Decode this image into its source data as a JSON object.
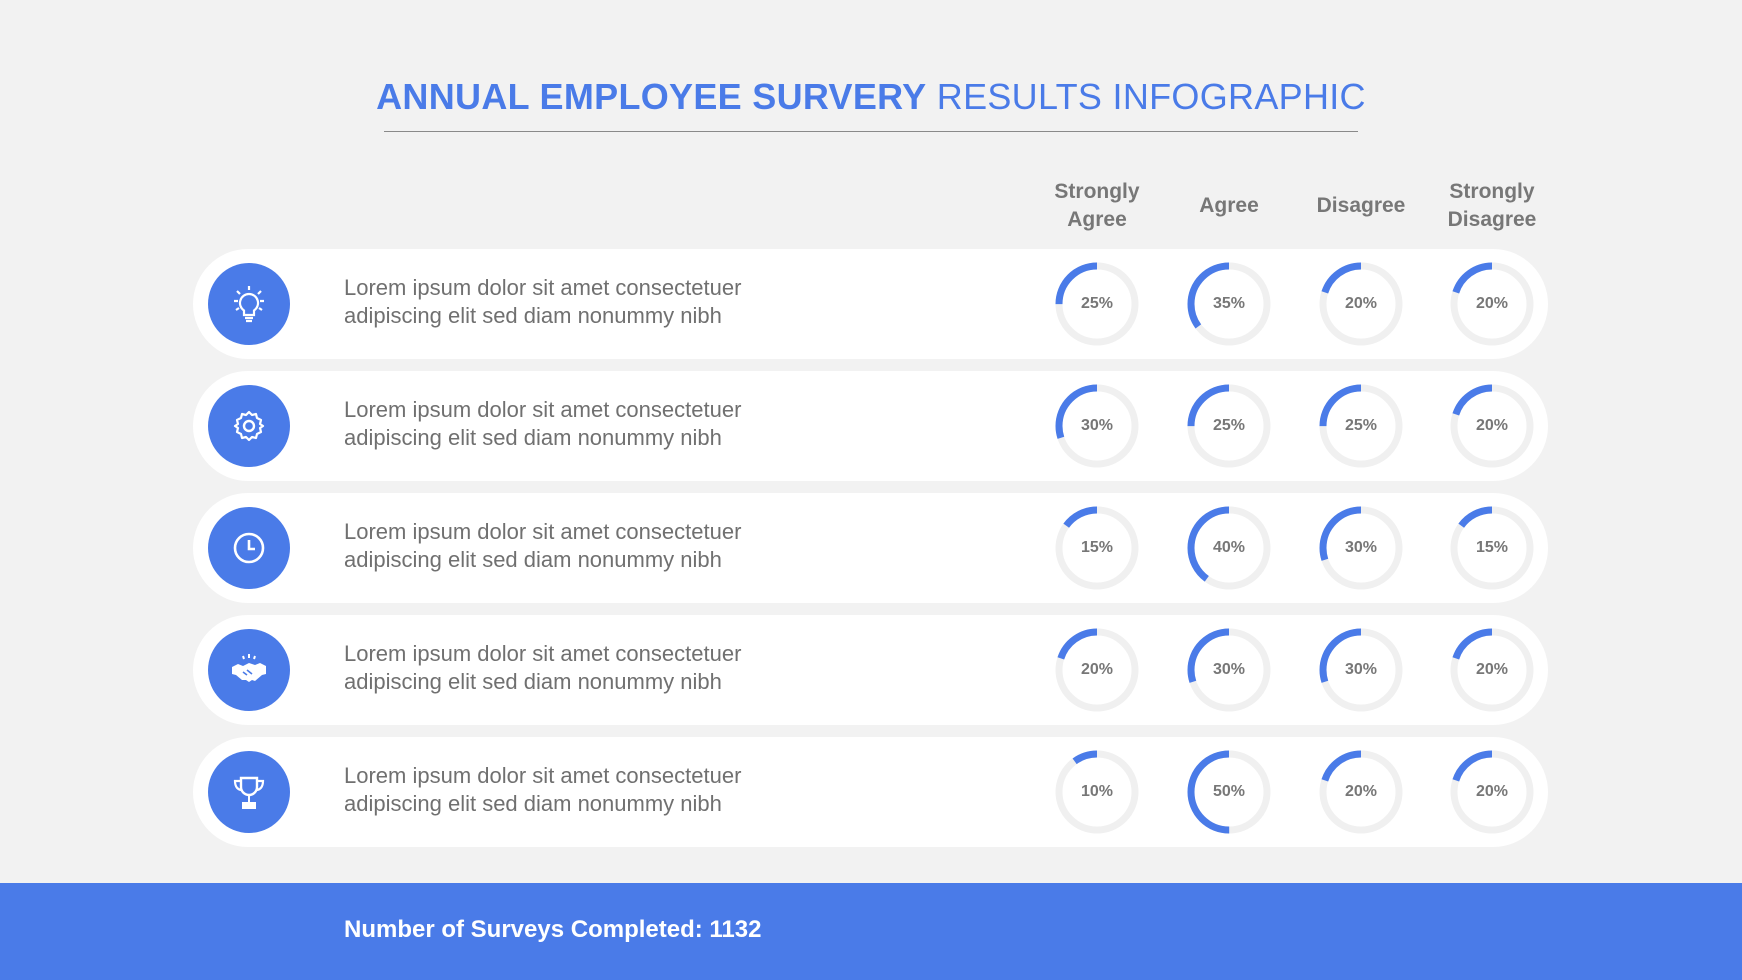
{
  "title": {
    "bold": "ANNUAL EMPLOYEE SURVERY",
    "light": "RESULTS INFOGRAPHIC"
  },
  "columns": [
    "Strongly Agree",
    "Agree",
    "Disagree",
    "Strongly Disagree"
  ],
  "colors": {
    "accent": "#4a7be8",
    "track": "#f0f0f0",
    "background": "#f2f2f2"
  },
  "rows": [
    {
      "icon": "lightbulb-icon",
      "line1": "Lorem ipsum dolor sit amet consectetuer",
      "line2": "adipiscing elit sed diam nonummy nibh",
      "values": [
        25,
        35,
        20,
        20
      ],
      "labels": [
        "25%",
        "35%",
        "20%",
        "20%"
      ]
    },
    {
      "icon": "gear-icon",
      "line1": "Lorem ipsum dolor sit amet consectetuer",
      "line2": "adipiscing elit sed diam nonummy nibh",
      "values": [
        30,
        25,
        25,
        20
      ],
      "labels": [
        "30%",
        "25%",
        "25%",
        "20%"
      ]
    },
    {
      "icon": "clock-icon",
      "line1": "Lorem ipsum dolor sit amet consectetuer",
      "line2": "adipiscing elit sed diam nonummy nibh",
      "values": [
        15,
        40,
        30,
        15
      ],
      "labels": [
        "15%",
        "40%",
        "30%",
        "15%"
      ]
    },
    {
      "icon": "handshake-icon",
      "line1": "Lorem ipsum dolor sit amet consectetuer",
      "line2": "adipiscing elit sed diam nonummy nibh",
      "values": [
        20,
        30,
        30,
        20
      ],
      "labels": [
        "20%",
        "30%",
        "30%",
        "20%"
      ]
    },
    {
      "icon": "trophy-icon",
      "line1": "Lorem ipsum dolor sit amet consectetuer",
      "line2": "adipiscing elit sed diam nonummy nibh",
      "values": [
        10,
        50,
        20,
        20
      ],
      "labels": [
        "10%",
        "50%",
        "20%",
        "20%"
      ]
    }
  ],
  "footer": {
    "text": "Number of Surveys Completed: 1132"
  }
}
